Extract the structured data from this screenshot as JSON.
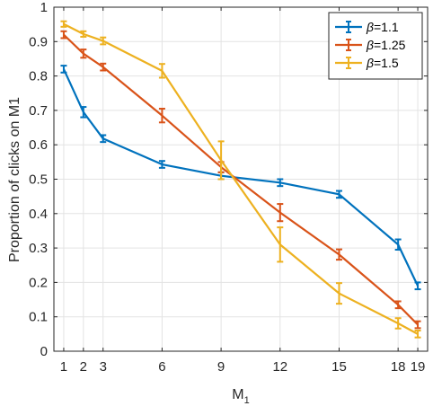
{
  "chart_data": {
    "type": "line",
    "x": [
      1,
      2,
      3,
      6,
      9,
      12,
      15,
      18,
      19
    ],
    "xticks": [
      "1",
      "2",
      "3",
      "6",
      "9",
      "12",
      "15",
      "18",
      "19"
    ],
    "yticks": [
      "0",
      "0.1",
      "0.2",
      "0.3",
      "0.4",
      "0.5",
      "0.6",
      "0.7",
      "0.8",
      "0.9",
      "1"
    ],
    "xlim": [
      0.5,
      19.5
    ],
    "ylim": [
      0,
      1
    ],
    "xlabel_main": "M",
    "xlabel_sub": "1",
    "ylabel": "Proportion of clicks on M1",
    "grid": true,
    "legend_position": "top-right",
    "series": [
      {
        "name_symbol": "β",
        "name_value": "=1.1",
        "color": "#0072BD",
        "values": [
          0.82,
          0.695,
          0.618,
          0.543,
          0.51,
          0.49,
          0.456,
          0.31,
          0.19
        ],
        "errors": [
          0.01,
          0.015,
          0.01,
          0.01,
          0.01,
          0.01,
          0.01,
          0.015,
          0.01
        ]
      },
      {
        "name_symbol": "β",
        "name_value": "=1.25",
        "color": "#D95319",
        "values": [
          0.92,
          0.865,
          0.826,
          0.685,
          0.535,
          0.403,
          0.281,
          0.135,
          0.077
        ],
        "errors": [
          0.01,
          0.012,
          0.01,
          0.02,
          0.015,
          0.025,
          0.015,
          0.01,
          0.01
        ]
      },
      {
        "name_symbol": "β",
        "name_value": "=1.5",
        "color": "#EDB120",
        "values": [
          0.951,
          0.922,
          0.902,
          0.815,
          0.555,
          0.31,
          0.168,
          0.081,
          0.05
        ],
        "errors": [
          0.008,
          0.008,
          0.01,
          0.02,
          0.055,
          0.05,
          0.03,
          0.015,
          0.01
        ]
      }
    ]
  }
}
